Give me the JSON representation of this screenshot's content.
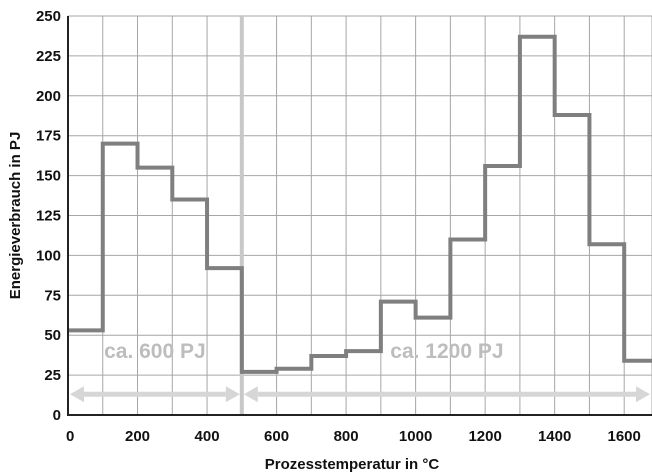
{
  "chart_data": {
    "type": "line",
    "step": true,
    "xlabel": "Prozesstemperatur  in °C",
    "ylabel": "Energieverbrauch in PJ",
    "xlim": [
      0,
      1680
    ],
    "ylim": [
      0,
      250
    ],
    "x_ticks": [
      0,
      200,
      400,
      600,
      800,
      1000,
      1200,
      1400,
      1600
    ],
    "y_ticks": [
      0,
      25,
      50,
      75,
      100,
      125,
      150,
      175,
      200,
      225,
      250
    ],
    "x_tick_labels": [
      "0",
      "200",
      "400",
      "600",
      "800",
      "1000",
      "1200",
      "1400",
      "1600"
    ],
    "y_tick_labels": [
      "0",
      "25",
      "50",
      "75",
      "100",
      "125",
      "150",
      "175",
      "200",
      "225",
      "250"
    ],
    "x_gridlines": [
      0,
      100,
      200,
      300,
      400,
      500,
      600,
      700,
      800,
      900,
      1000,
      1100,
      1200,
      1300,
      1400,
      1500,
      1600,
      1680
    ],
    "grid": true,
    "series": [
      {
        "bins": [
          {
            "x0": 0,
            "x1": 100,
            "y": 53
          },
          {
            "x0": 100,
            "x1": 200,
            "y": 170
          },
          {
            "x0": 200,
            "x1": 300,
            "y": 155
          },
          {
            "x0": 300,
            "x1": 400,
            "y": 135
          },
          {
            "x0": 400,
            "x1": 500,
            "y": 92
          },
          {
            "x0": 500,
            "x1": 600,
            "y": 27
          },
          {
            "x0": 600,
            "x1": 700,
            "y": 29
          },
          {
            "x0": 700,
            "x1": 800,
            "y": 37
          },
          {
            "x0": 800,
            "x1": 900,
            "y": 40
          },
          {
            "x0": 900,
            "x1": 1000,
            "y": 71
          },
          {
            "x0": 1000,
            "x1": 1100,
            "y": 61
          },
          {
            "x0": 1100,
            "x1": 1200,
            "y": 110
          },
          {
            "x0": 1200,
            "x1": 1300,
            "y": 156
          },
          {
            "x0": 1300,
            "x1": 1400,
            "y": 237
          },
          {
            "x0": 1400,
            "x1": 1500,
            "y": 188
          },
          {
            "x0": 1500,
            "x1": 1600,
            "y": 107
          },
          {
            "x0": 1600,
            "x1": 1680,
            "y": 34
          }
        ]
      }
    ],
    "divider_x": 500,
    "annotations": [
      {
        "text": "ca. 600 PJ",
        "x": 250,
        "y": 40
      },
      {
        "text": "ca. 1200 PJ",
        "x": 1090,
        "y": 40
      }
    ],
    "ranges": [
      {
        "from": 0,
        "to": 500,
        "y": 13
      },
      {
        "from": 500,
        "to": 1680,
        "y": 13
      }
    ],
    "colors": {
      "line": "#7f7f7f",
      "divider": "#c8c8c8",
      "range_arrow": "#d6d6d6",
      "annotation": "#bdbdbd",
      "grid": "#a6a6a6",
      "axis": "#222222"
    }
  }
}
